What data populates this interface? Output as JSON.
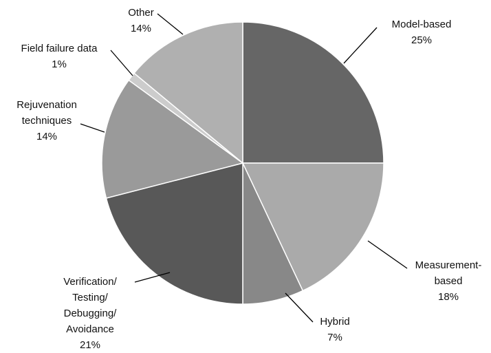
{
  "chart_data": {
    "type": "pie",
    "categories": [
      "Model-based",
      "Measurement-based",
      "Hybrid",
      "Verification/ Testing/ Debugging/ Avoidance",
      "Rejuvenation techniques",
      "Field failure data",
      "Other"
    ],
    "values": [
      25,
      18,
      7,
      21,
      14,
      1,
      14
    ],
    "value_labels": [
      "25%",
      "18%",
      "7%",
      "21%",
      "14%",
      "1%",
      "14%"
    ],
    "colors": [
      "#666666",
      "#aaaaaa",
      "#888888",
      "#585858",
      "#9a9a9a",
      "#cccccc",
      "#b0b0b0"
    ]
  }
}
